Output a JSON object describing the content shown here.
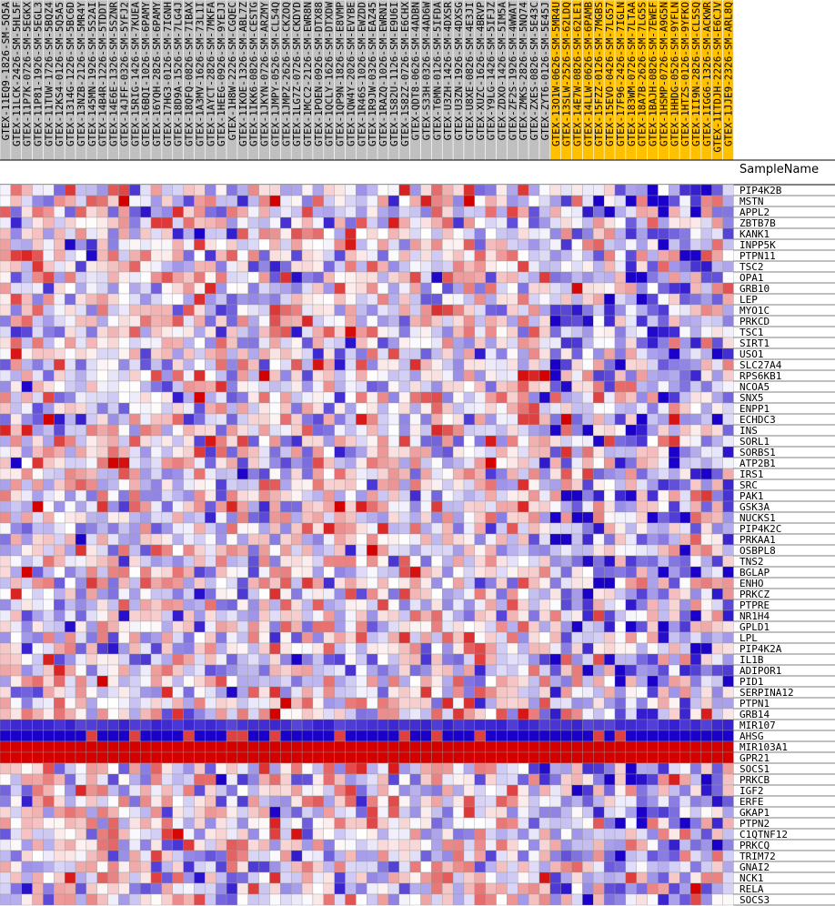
{
  "chart_data": {
    "type": "heatmap",
    "header_label": "SampleName",
    "samples": [
      "GTEX-11EQ9-1826-SM-5Q5A",
      "GTEX-11LCK-2426-SM-5HL5F",
      "GTEX-11P7K-0726-SM-5EGKX",
      "GTEX-11P81-1926-SM-5EGL3",
      "GTEX-11TUW-1726-SM-5BQZ4",
      "GTEX-12KS4-0126-SM-5Q5A5",
      "GTEX-1314G-1226-SM-5BC6D",
      "GTEX-13NZB-2126-SM-5MR4Y",
      "GTEX-145MN-1926-SM-5S2AI",
      "GTEX-14B4R-1226-SM-5TDDT",
      "GTEX-14E6E-1326-SM-5SZNR",
      "GTEX-14JFF-0326-SM-5YFJ2",
      "GTEX-15RIG-1426-SM-7KUEA",
      "GTEX-16BQI-1026-SM-6PAMY",
      "GTEX-16YQH-2826-SM-6PAMY",
      "GTEX-17HG3-0126-SM-7IGNH",
      "GTEX-18D9A-1526-SM-7LG4J",
      "GTEX-18QFQ-0826-SM-7IBAX",
      "GTEX-1A3MV-1626-SM-73L1I",
      "GTEX-1AYCT-2826-SM-7MKFA",
      "GTEX-1HEEG-0926-SM-9YEJJ",
      "GTEX-1H8W-2226-SM-CGQEC",
      "GTEX-1IKOE-1326-SM-ABL7Z",
      "GTEX-1IKK6-0826-SM-CESTG",
      "GTEX-1JKYN-0726-SM-ARZMY",
      "GTEX-1JMPY-0526-SM-CL54Q",
      "GTEX-1JMPZ-2626-SM-CKZOQ",
      "GTEX-1LG7Z-0726-SM-CKDYD",
      "GTEX-1MCC2-2126-SM-EWR8N",
      "GTEX-1POEN-0926-SM-DTX88",
      "GTEX-1QCLY-1626-SM-DTXDW",
      "GTEX-1QP9N-1826-SM-E8VMP",
      "GTEX-1QW4Y-2026-SM-EVYBE",
      "GTEX-1R46S-1026-SM-EWZDD",
      "GTEX-1R9JW-0326-SM-EAZ45",
      "GTEX-1RAZQ-1026-SM-EWRNI",
      "GTEX-1S82U-1126-SM-E9U6I",
      "GTEX-1S82Z-0726-SM-E6CHX",
      "GTEX-QDT8-0626-SM-4ADBN",
      "GTEX-S33H-0326-SM-4AD6W",
      "GTEX-T6MN-0126-SM-5IFDA",
      "GTEX-U3ZH-1426-SM-4DXSR",
      "GTEX-U3ZN-1926-SM-4DXSG",
      "GTEX-U8XE-0826-SM-4E3JI",
      "GTEX-XUZC-1626-SM-4BRVP",
      "GTEX-Y9LG-1426-SM-5IFJZ",
      "GTEX-ZDXO-1426-SM-5IM5A",
      "GTEX-ZF2S-1926-SM-4WWAT",
      "GTEX-ZMKS-2826-SM-5NQ74",
      "GTEX-ZXES-0826-SM-5E43C",
      "GTEX-ZYT6-0126-SM-5E45J",
      "GTEX-13O1W-0626-SM-5MR4U",
      "GTEX-13SLW-2526-SM-62LDQ",
      "GTEX-14E7W-0826-SM-62LE1",
      "GTEX-14LLW-0626-SM-6PAMB",
      "GTEX-15FZZ-0126-SM-7MGBS",
      "GTEX-15EVO-0426-SM-7LG57",
      "GTEX-17F96-2426-SM-7IGLN",
      "GTEX-183WM-0726-SM-7LTAA",
      "GTEX-18A7B-2626-SM-7LG5S",
      "GTEX-1BAJH-0826-SM-7EWEF",
      "GTEX-1HSMP-0726-SM-A9G5N",
      "GTEX-1HHDG-0526-SM-9YFLN",
      "GTEX-1HTZS-0126-SM-9YFKO",
      "GTEX-1II9N-2826-SM-CL5SQ",
      "GTEX-1IGG6-1326-SM-ACKWR",
      "GTEX-1ITDJH-2226-SM-E6CJV",
      "GTEX-1JJE9-2326-SM-ARL8Q"
    ],
    "group_a_count": 51,
    "group_b_count": 17,
    "genes": [
      "PIP4K2B",
      "MSTN",
      "APPL2",
      "ZBTB7B",
      "KANK1",
      "INPP5K",
      "PTPN11",
      "TSC2",
      "OPA1",
      "GRB10",
      "LEP",
      "MYO1C",
      "PRKCD",
      "TSC1",
      "SIRT1",
      "USO1",
      "SLC27A4",
      "RPS6KB1",
      "NCOA5",
      "SNX5",
      "ENPP1",
      "ECHDC3",
      "INS",
      "SORL1",
      "SORBS1",
      "ATP2B1",
      "IRS1",
      "SRC",
      "PAK1",
      "GSK3A",
      "NUCKS1",
      "PIP4K2C",
      "PRKAA1",
      "OSBPL8",
      "TNS2",
      "BGLAP",
      "ENHO",
      "PRKCZ",
      "PTPRE",
      "NR1H4",
      "GPLD1",
      "LPL",
      "PIP4K2A",
      "IL1B",
      "ADIPOR1",
      "PID1",
      "SERPINA12",
      "PTPN1",
      "GRB14",
      "MIR107",
      "AHSG",
      "MIR103A1",
      "GPR21",
      "SOCS1",
      "PRKCB",
      "IGF2",
      "ERFE",
      "GKAP1",
      "PTPN2",
      "C1QTNF12",
      "PRKCQ",
      "TRIM72",
      "GNAI2",
      "NCK1",
      "RELA",
      "SOCS3"
    ],
    "value_range": [
      -2,
      2
    ],
    "color_low": "#1a00c8",
    "color_mid": "#ffffff",
    "color_high": "#d40000",
    "group_a_label_color": "#c0c0c0",
    "group_b_label_color": "#ffc000",
    "legend": "none",
    "grid": true
  }
}
